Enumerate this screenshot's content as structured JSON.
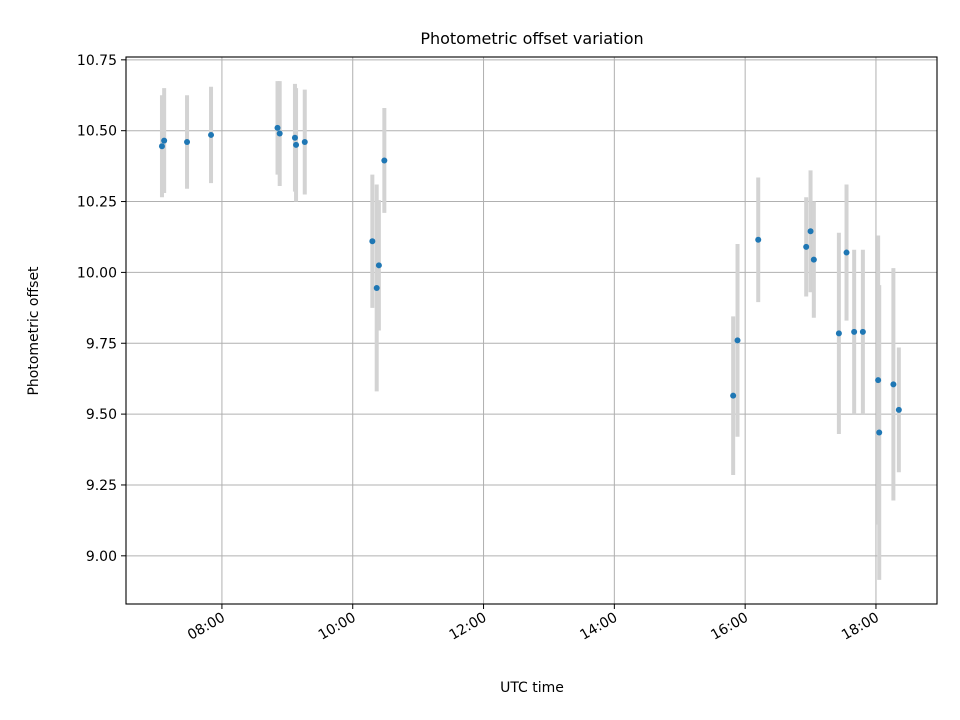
{
  "chart_data": {
    "type": "scatter",
    "title": "Photometric offset variation",
    "xlabel": "UTC time",
    "ylabel": "Photometric offset",
    "xlim": [
      "06:32",
      "18:56"
    ],
    "ylim": [
      8.83,
      10.76
    ],
    "x_ticks": [
      "08:00",
      "10:00",
      "12:00",
      "14:00",
      "16:00",
      "18:00"
    ],
    "y_ticks": [
      9.0,
      9.25,
      9.5,
      9.75,
      10.0,
      10.25,
      10.5,
      10.75
    ],
    "y_tick_labels": [
      "9.00",
      "9.25",
      "9.50",
      "9.75",
      "10.00",
      "10.25",
      "10.50",
      "10.75"
    ],
    "grid": true,
    "marker_color": "#1f77b4",
    "errorbar_color": "#d3d3d3",
    "points": [
      {
        "x": "07:05",
        "y": 10.445,
        "err": 0.18
      },
      {
        "x": "07:07",
        "y": 10.465,
        "err": 0.185
      },
      {
        "x": "07:28",
        "y": 10.46,
        "err": 0.165
      },
      {
        "x": "07:50",
        "y": 10.485,
        "err": 0.17
      },
      {
        "x": "08:51",
        "y": 10.51,
        "err": 0.165
      },
      {
        "x": "08:53",
        "y": 10.49,
        "err": 0.185
      },
      {
        "x": "09:07",
        "y": 10.475,
        "err": 0.19
      },
      {
        "x": "09:08",
        "y": 10.45,
        "err": 0.2
      },
      {
        "x": "09:16",
        "y": 10.46,
        "err": 0.185
      },
      {
        "x": "10:18",
        "y": 10.11,
        "err": 0.235
      },
      {
        "x": "10:22",
        "y": 9.945,
        "err": 0.365
      },
      {
        "x": "10:24",
        "y": 10.025,
        "err": 0.23
      },
      {
        "x": "10:29",
        "y": 10.395,
        "err": 0.185
      },
      {
        "x": "15:49",
        "y": 9.565,
        "err": 0.28
      },
      {
        "x": "15:53",
        "y": 9.76,
        "err": 0.34
      },
      {
        "x": "16:12",
        "y": 10.115,
        "err": 0.22
      },
      {
        "x": "16:56",
        "y": 10.09,
        "err": 0.175
      },
      {
        "x": "17:00",
        "y": 10.145,
        "err": 0.215
      },
      {
        "x": "17:03",
        "y": 10.045,
        "err": 0.205
      },
      {
        "x": "17:26",
        "y": 9.785,
        "err": 0.355
      },
      {
        "x": "17:33",
        "y": 10.07,
        "err": 0.24
      },
      {
        "x": "17:40",
        "y": 9.79,
        "err": 0.29
      },
      {
        "x": "17:48",
        "y": 9.79,
        "err": 0.29
      },
      {
        "x": "18:02",
        "y": 9.62,
        "err": 0.51
      },
      {
        "x": "18:03",
        "y": 9.435,
        "err": 0.52
      },
      {
        "x": "18:16",
        "y": 9.605,
        "err": 0.41
      },
      {
        "x": "18:21",
        "y": 9.515,
        "err": 0.22
      }
    ]
  }
}
